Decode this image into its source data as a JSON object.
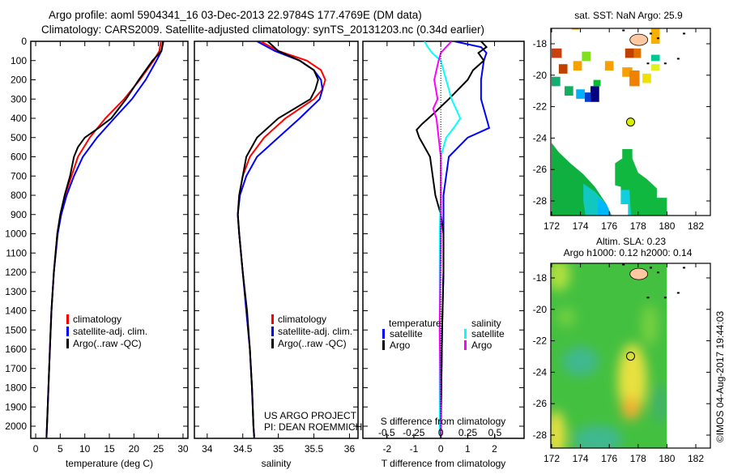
{
  "title": {
    "line1": "Argo profile: aoml 5904341_16 03-Dec-2013 22.9784S 177.4769E (DM data)",
    "line2": "Climatology: CARS2009. Satellite-adjusted climatology: synTS_20131203.nc (0.34d earlier)"
  },
  "credit": "©IMOS 04-Aug-2017 19:44:03",
  "project_note": {
    "line1": "US ARGO PROJECT",
    "line2": "PI: DEAN ROEMMICH"
  },
  "colors": {
    "climatology": "#ff0000",
    "satellite": "#0000ff",
    "argo": "#000000",
    "sal_satellite": "#00ffff",
    "sal_argo": "#ff00ff",
    "argo_marker": "#d8f000",
    "land": "#ffc8a0"
  },
  "chart_data": [
    {
      "type": "line",
      "name": "temperature",
      "xlabel": "temperature (deg C)",
      "ylabel": "",
      "xlim": [
        -1,
        31
      ],
      "ylim": [
        2060,
        0
      ],
      "xticks": [
        0,
        5,
        10,
        15,
        20,
        25,
        30
      ],
      "yticks": [
        0,
        100,
        200,
        300,
        400,
        500,
        600,
        700,
        800,
        900,
        1000,
        1100,
        1200,
        1300,
        1400,
        1500,
        1600,
        1700,
        1800,
        1900,
        2000
      ],
      "legend": [
        "climatology",
        "satellite-adj. clim.",
        "Argo(..raw -QC)"
      ],
      "legend_placement": "lower-center",
      "series": [
        {
          "name": "climatology",
          "color": "#ff0000",
          "depth": [
            0,
            50,
            100,
            200,
            300,
            400,
            500,
            600,
            700,
            800,
            900,
            1000,
            1200,
            1400,
            1600,
            1800,
            2000,
            2050
          ],
          "values": [
            25.5,
            25.2,
            24.0,
            21.2,
            18.0,
            14.2,
            11.0,
            8.6,
            7.3,
            6.0,
            5.1,
            4.4,
            3.7,
            3.2,
            2.9,
            2.6,
            2.3,
            2.2
          ]
        },
        {
          "name": "satellite-adj. clim.",
          "color": "#0000ff",
          "depth": [
            0,
            50,
            100,
            200,
            300,
            400,
            500,
            600,
            700,
            800,
            900,
            1000,
            1200,
            1400,
            1600,
            1800,
            2000,
            2050
          ],
          "values": [
            25.9,
            25.6,
            24.6,
            22.4,
            19.6,
            16.0,
            12.5,
            9.6,
            7.8,
            6.3,
            5.2,
            4.5,
            3.7,
            3.2,
            2.9,
            2.6,
            2.3,
            2.2
          ]
        },
        {
          "name": "Argo(..raw -QC)",
          "color": "#000000",
          "depth": [
            0,
            50,
            100,
            200,
            300,
            400,
            450,
            500,
            550,
            600,
            700,
            800,
            900,
            1000,
            1200,
            1400,
            1600,
            1800,
            2000,
            2060
          ],
          "values": [
            26.0,
            25.6,
            23.8,
            21.0,
            18.4,
            15.4,
            12.8,
            10.0,
            8.6,
            7.8,
            7.0,
            5.9,
            5.0,
            4.4,
            3.7,
            3.2,
            2.9,
            2.6,
            2.3,
            2.2
          ]
        }
      ]
    },
    {
      "type": "line",
      "name": "salinity",
      "xlabel": "salinity",
      "xlim": [
        33.82,
        36.12
      ],
      "ylim": [
        2060,
        0
      ],
      "xticks": [
        34,
        34.5,
        35,
        35.5,
        36
      ],
      "legend": [
        "climatology",
        "satellite-adj. clim.",
        "Argo(..raw -QC)"
      ],
      "legend_placement": "lower-center",
      "series": [
        {
          "name": "climatology",
          "color": "#ff0000",
          "depth": [
            0,
            50,
            100,
            150,
            200,
            250,
            300,
            400,
            500,
            600,
            700,
            800,
            900,
            1000,
            1200,
            1400,
            1600,
            1800,
            2000,
            2050
          ],
          "values": [
            34.75,
            35.0,
            35.4,
            35.6,
            35.66,
            35.62,
            35.5,
            35.1,
            34.8,
            34.6,
            34.5,
            34.45,
            34.43,
            34.45,
            34.5,
            34.55,
            34.6,
            34.63,
            34.65,
            34.66
          ]
        },
        {
          "name": "satellite-adj. clim.",
          "color": "#0000ff",
          "depth": [
            0,
            50,
            100,
            150,
            200,
            250,
            300,
            400,
            500,
            600,
            700,
            800,
            900,
            1000,
            1200,
            1400,
            1600,
            1800,
            2000,
            2050
          ],
          "values": [
            34.7,
            34.95,
            35.3,
            35.5,
            35.6,
            35.62,
            35.58,
            35.3,
            35.0,
            34.7,
            34.55,
            34.46,
            34.43,
            34.45,
            34.5,
            34.55,
            34.6,
            34.63,
            34.65,
            34.66
          ]
        },
        {
          "name": "Argo(..raw -QC)",
          "color": "#000000",
          "depth": [
            0,
            50,
            100,
            150,
            200,
            250,
            300,
            400,
            500,
            600,
            700,
            800,
            900,
            1000,
            1200,
            1400,
            1600,
            1800,
            2000,
            2060
          ],
          "values": [
            34.85,
            35.0,
            35.3,
            35.5,
            35.56,
            35.52,
            35.45,
            35.0,
            34.7,
            34.55,
            34.5,
            34.45,
            34.43,
            34.45,
            34.5,
            34.56,
            34.6,
            34.63,
            34.65,
            34.66
          ]
        }
      ]
    },
    {
      "type": "line",
      "name": "differences",
      "xlabel": "T difference from climatology",
      "xlabel2": "S difference from climatology",
      "xlim": [
        -2.9,
        3.1
      ],
      "xticks": [
        -2,
        -1,
        0,
        1,
        2
      ],
      "xlim_s": [
        -0.72,
        0.77
      ],
      "xticks_s": [
        "-0.5",
        "-0.25",
        "0",
        "0.25",
        "0.5"
      ],
      "xticks_s_values": [
        -0.5,
        -0.25,
        0,
        0.25,
        0.5
      ],
      "ylim": [
        2060,
        0
      ],
      "legend_temperature": {
        "title": "temperature",
        "items": [
          "satellite",
          "Argo"
        ]
      },
      "legend_salinity": {
        "title": "salinity",
        "items": [
          "satellite",
          "Argo"
        ]
      },
      "series": [
        {
          "name": "T satellite",
          "axis": "T",
          "color": "#0000ff",
          "depth": [
            0,
            30,
            60,
            100,
            200,
            300,
            400,
            450,
            500,
            600,
            700,
            800,
            1000,
            1200,
            1500,
            2000,
            2050
          ],
          "values": [
            0.5,
            1.5,
            1.7,
            1.6,
            1.5,
            1.5,
            1.7,
            1.8,
            1.0,
            0.3,
            0.2,
            0.1,
            0.1,
            0.1,
            0.05,
            0.0,
            0.0
          ]
        },
        {
          "name": "T Argo",
          "axis": "T",
          "color": "#000000",
          "depth": [
            0,
            30,
            60,
            100,
            150,
            200,
            300,
            380,
            430,
            460,
            500,
            550,
            600,
            700,
            800,
            900,
            1000,
            1200,
            1500,
            2000,
            2060
          ],
          "values": [
            1.5,
            1.7,
            1.4,
            1.6,
            1.2,
            1.0,
            0.3,
            -0.3,
            -0.7,
            -0.9,
            -0.8,
            -0.6,
            -0.4,
            -0.3,
            -0.2,
            0.0,
            0.1,
            0.1,
            0.05,
            0.0,
            0.0
          ]
        },
        {
          "name": "S satellite",
          "axis": "S",
          "color": "#00ffff",
          "depth": [
            0,
            30,
            60,
            100,
            200,
            300,
            400,
            450,
            500,
            600,
            700,
            800,
            1000,
            1500,
            2000,
            2050
          ],
          "values": [
            -0.15,
            -0.12,
            -0.08,
            0.0,
            0.05,
            0.1,
            0.18,
            0.12,
            0.05,
            0.0,
            0.0,
            0.0,
            -0.01,
            -0.01,
            -0.01,
            -0.01
          ]
        },
        {
          "name": "S Argo",
          "axis": "S",
          "color": "#ff00ff",
          "depth": [
            0,
            30,
            60,
            100,
            200,
            300,
            350,
            400,
            500,
            600,
            700,
            800,
            1000,
            1500,
            2000,
            2060
          ],
          "values": [
            0.1,
            0.05,
            0.0,
            -0.02,
            -0.06,
            -0.03,
            -0.07,
            -0.04,
            -0.02,
            0.0,
            0.0,
            0.0,
            0.0,
            -0.01,
            0.0,
            0.0
          ]
        }
      ]
    }
  ],
  "maps": [
    {
      "title": "sat. SST: NaN Argo: 25.9",
      "lon_ticks": [
        172,
        174,
        176,
        178,
        180,
        182
      ],
      "lat_ticks": [
        -18,
        -20,
        -22,
        -24,
        -26,
        -28
      ],
      "argo_position": {
        "lon": 177.4769,
        "lat": -22.9784
      }
    },
    {
      "title1": "Altim. SLA: 0.23",
      "title2": "Argo h1000: 0.12 h2000: 0.14",
      "lon_ticks": [
        172,
        174,
        176,
        178,
        180,
        182
      ],
      "lat_ticks": [
        -18,
        -20,
        -22,
        -24,
        -26,
        -28
      ],
      "argo_position": {
        "lon": 177.4769,
        "lat": -22.9784
      }
    }
  ]
}
